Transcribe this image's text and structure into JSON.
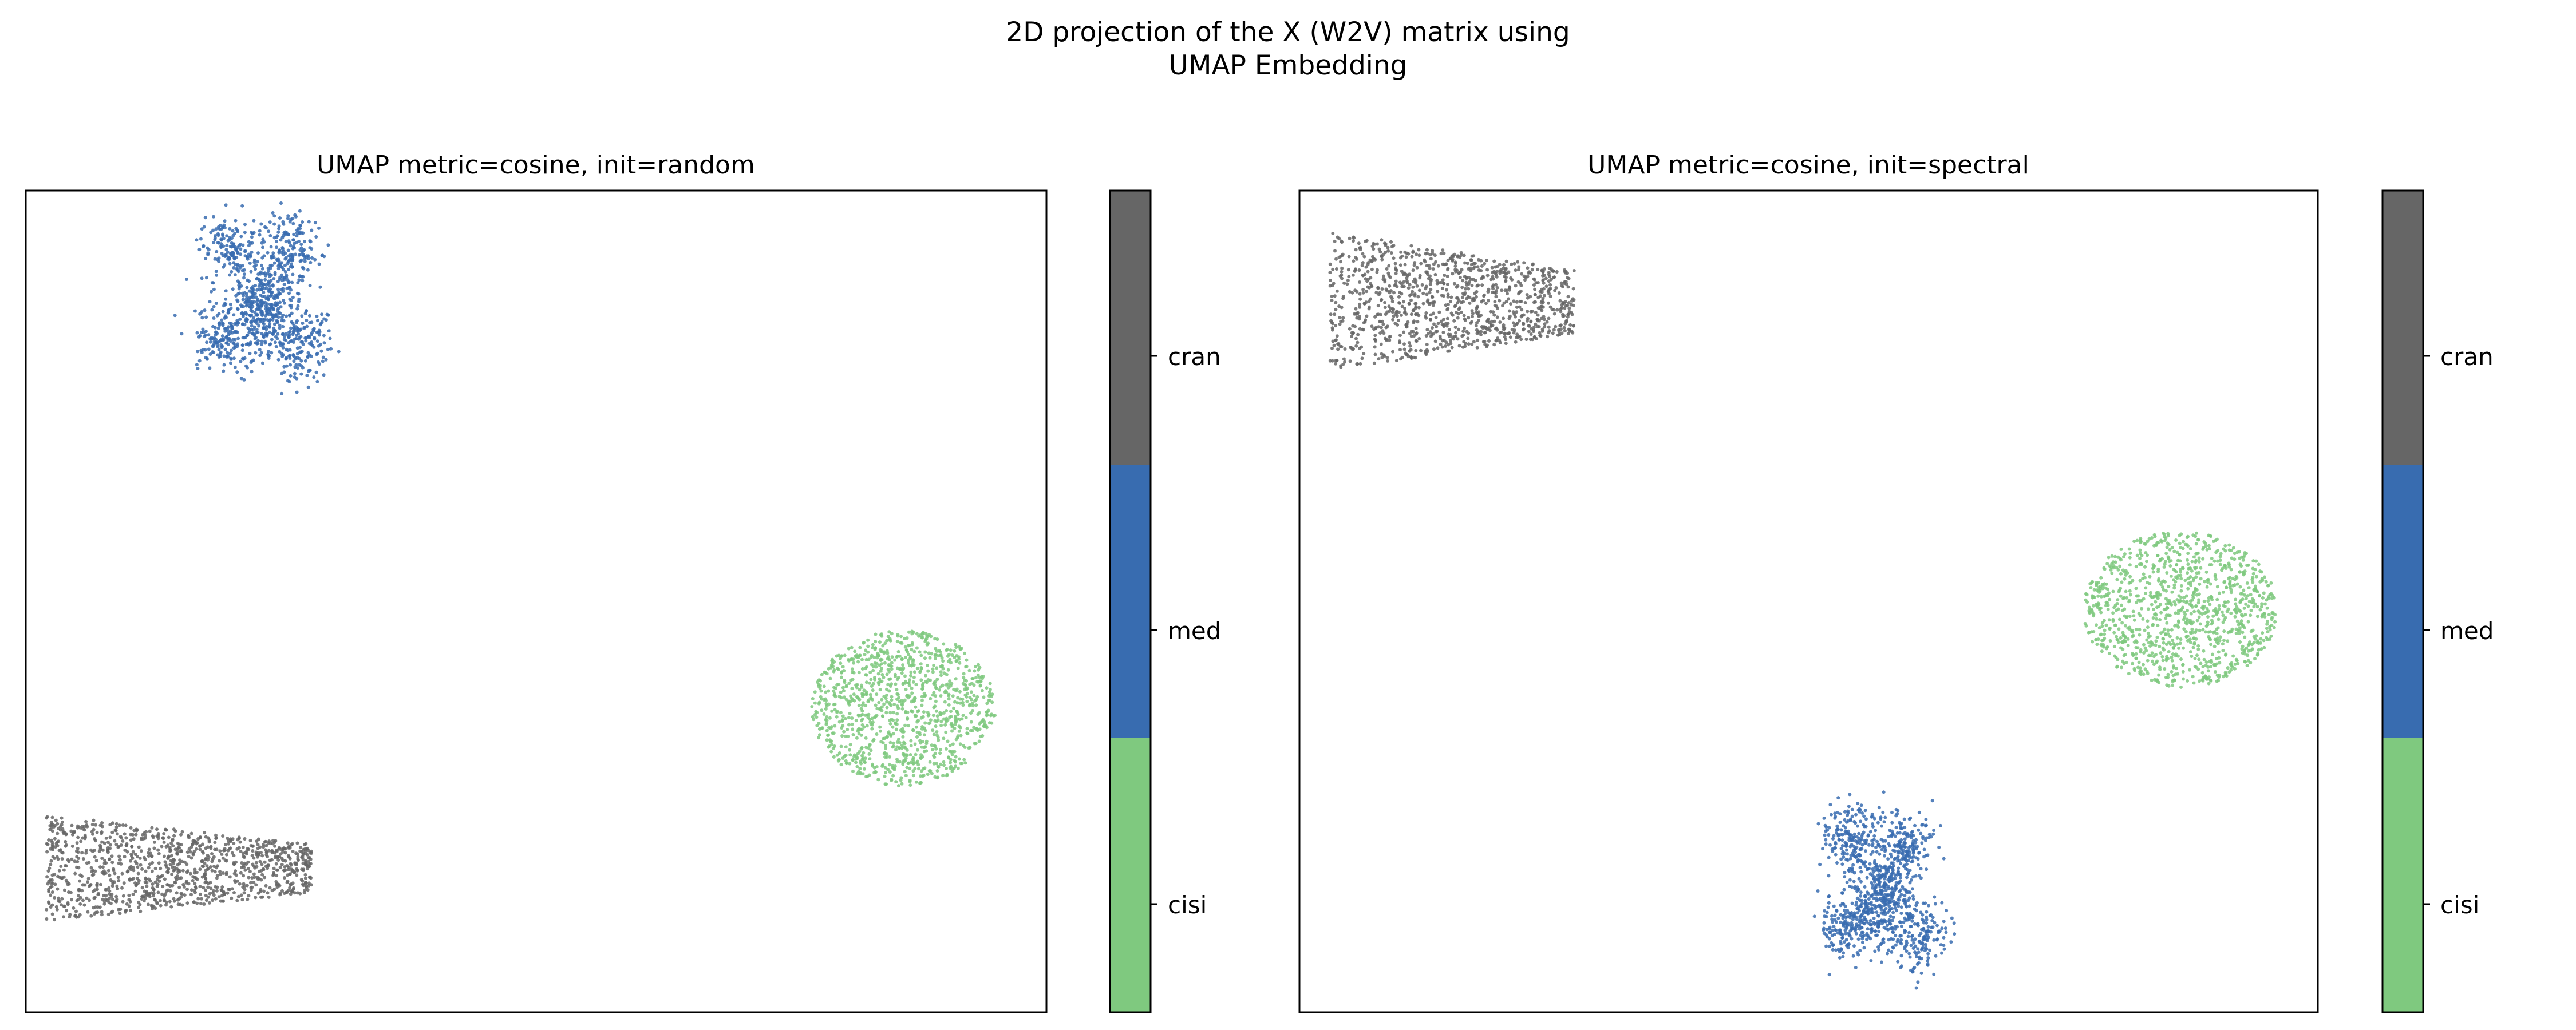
{
  "figure": {
    "suptitle_line1": "2D projection of the X (W2V) matrix using",
    "suptitle_line2": "UMAP Embedding"
  },
  "colors": {
    "cisi": "#7fc97f",
    "med": "#386cb0",
    "cran": "#666666"
  },
  "chart_data": [
    {
      "type": "scatter",
      "title": "UMAP metric=cosine, init=random",
      "xlabel": "",
      "ylabel": "",
      "axis_ticks": false,
      "grid": false,
      "xlim": [
        0,
        100
      ],
      "ylim": [
        0,
        100
      ],
      "colorbar": {
        "categories": [
          "cisi",
          "med",
          "cran"
        ],
        "colors": [
          "#7fc97f",
          "#386cb0",
          "#666666"
        ]
      },
      "series": [
        {
          "name": "med",
          "color": "#386cb0",
          "cluster": {
            "cx": 23,
            "cy": 87,
            "rx": 7.5,
            "ry": 11,
            "shape": "irregular"
          }
        },
        {
          "name": "cisi",
          "color": "#7fc97f",
          "cluster": {
            "cx": 86,
            "cy": 37,
            "rx": 9,
            "ry": 9.5,
            "shape": "round"
          }
        },
        {
          "name": "cran",
          "color": "#666666",
          "cluster": {
            "cx": 15,
            "cy": 17.5,
            "rx": 13,
            "ry": 6.5,
            "shape": "triangular"
          }
        }
      ]
    },
    {
      "type": "scatter",
      "title": "UMAP metric=cosine, init=spectral",
      "xlabel": "",
      "ylabel": "",
      "axis_ticks": false,
      "grid": false,
      "xlim": [
        0,
        100
      ],
      "ylim": [
        0,
        100
      ],
      "colorbar": {
        "categories": [
          "cisi",
          "med",
          "cran"
        ],
        "colors": [
          "#7fc97f",
          "#386cb0",
          "#666666"
        ]
      },
      "series": [
        {
          "name": "cran",
          "color": "#666666",
          "cluster": {
            "cx": 15,
            "cy": 86.5,
            "rx": 12,
            "ry": 8.5,
            "shape": "triangular"
          }
        },
        {
          "name": "cisi",
          "color": "#7fc97f",
          "cluster": {
            "cx": 86.5,
            "cy": 49,
            "rx": 9.5,
            "ry": 9.5,
            "shape": "round"
          }
        },
        {
          "name": "med",
          "color": "#386cb0",
          "cluster": {
            "cx": 57,
            "cy": 15,
            "rx": 7,
            "ry": 11,
            "shape": "irregular"
          }
        }
      ]
    }
  ]
}
